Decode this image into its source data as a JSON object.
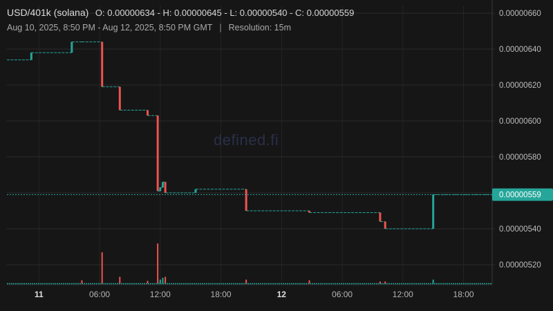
{
  "header": {
    "symbol": "USD/401k (solana)",
    "ohlc": "O: 0.00000634 - H: 0.00000645 - L: 0.00000540 - C: 0.00000559",
    "range": "Aug 10, 2025, 8:50 PM - Aug 12, 2025, 8:50 PM GMT",
    "separator": "|",
    "resolution": "Resolution: 15m"
  },
  "watermark": "defined.fi",
  "chart_data": {
    "type": "line",
    "title": "USD/401k (solana)",
    "xlabel": "",
    "ylabel": "",
    "grid": true,
    "y_range": [
      5.1e-06,
      6.6e-06
    ],
    "y_ticks": [
      "0.00000660",
      "0.00000640",
      "0.00000620",
      "0.00000600",
      "0.00000580",
      "0.00000560",
      "0.00000540",
      "0.00000520"
    ],
    "y_tick_values": [
      6.6e-06,
      6.4e-06,
      6.2e-06,
      6e-06,
      5.8e-06,
      5.6e-06,
      5.4e-06,
      5.2e-06
    ],
    "x_range": [
      "2025-08-10T20:50",
      "2025-08-12T20:50"
    ],
    "x_ticks": [
      {
        "t": "2025-08-11T00:00",
        "label": "11",
        "bold": true
      },
      {
        "t": "2025-08-11T06:00",
        "label": "06:00"
      },
      {
        "t": "2025-08-11T12:00",
        "label": "12:00"
      },
      {
        "t": "2025-08-11T18:00",
        "label": "18:00"
      },
      {
        "t": "2025-08-12T00:00",
        "label": "12",
        "bold": true
      },
      {
        "t": "2025-08-12T06:00",
        "label": "06:00"
      },
      {
        "t": "2025-08-12T12:00",
        "label": "12:00"
      },
      {
        "t": "2025-08-12T18:00",
        "label": "18:00"
      }
    ],
    "last_price": {
      "value": 5.59e-06,
      "label": "0.00000559",
      "color": "#26a69a"
    },
    "colors": {
      "up": "#26a69a",
      "down": "#ef5350"
    },
    "price_steps": [
      {
        "t": "2025-08-10T20:50",
        "v": 6.34e-06
      },
      {
        "t": "2025-08-10T23:15",
        "v": 6.38e-06
      },
      {
        "t": "2025-08-11T03:15",
        "v": 6.44e-06
      },
      {
        "t": "2025-08-11T04:15",
        "v": 6.44e-06
      },
      {
        "t": "2025-08-11T06:15",
        "v": 6.19e-06
      },
      {
        "t": "2025-08-11T08:00",
        "v": 6.06e-06
      },
      {
        "t": "2025-08-11T10:45",
        "v": 6.03e-06
      },
      {
        "t": "2025-08-11T11:45",
        "v": 5.61e-06
      },
      {
        "t": "2025-08-11T12:00",
        "v": 5.63e-06
      },
      {
        "t": "2025-08-11T12:15",
        "v": 5.66e-06
      },
      {
        "t": "2025-08-11T12:30",
        "v": 5.6e-06
      },
      {
        "t": "2025-08-11T15:30",
        "v": 5.62e-06
      },
      {
        "t": "2025-08-11T20:30",
        "v": 5.5e-06
      },
      {
        "t": "2025-08-12T02:45",
        "v": 5.49e-06
      },
      {
        "t": "2025-08-12T09:45",
        "v": 5.44e-06
      },
      {
        "t": "2025-08-12T10:15",
        "v": 5.4e-06
      },
      {
        "t": "2025-08-12T15:00",
        "v": 5.59e-06
      },
      {
        "t": "2025-08-12T20:50",
        "v": 5.59e-06
      }
    ],
    "volume_spikes": [
      {
        "t": "2025-08-11T04:15",
        "h": 0.1,
        "dir": "down"
      },
      {
        "t": "2025-08-11T06:15",
        "h": 1.0,
        "dir": "down"
      },
      {
        "t": "2025-08-11T08:00",
        "h": 0.21,
        "dir": "down"
      },
      {
        "t": "2025-08-11T10:45",
        "h": 0.08,
        "dir": "down"
      },
      {
        "t": "2025-08-11T11:45",
        "h": 1.28,
        "dir": "down"
      },
      {
        "t": "2025-08-11T12:00",
        "h": 0.12,
        "dir": "up"
      },
      {
        "t": "2025-08-11T12:15",
        "h": 0.18,
        "dir": "up"
      },
      {
        "t": "2025-08-11T12:30",
        "h": 0.21,
        "dir": "down"
      },
      {
        "t": "2025-08-11T20:30",
        "h": 0.12,
        "dir": "down"
      },
      {
        "t": "2025-08-12T02:45",
        "h": 0.1,
        "dir": "down"
      },
      {
        "t": "2025-08-12T09:45",
        "h": 0.06,
        "dir": "down"
      },
      {
        "t": "2025-08-12T10:15",
        "h": 0.06,
        "dir": "down"
      },
      {
        "t": "2025-08-12T15:00",
        "h": 0.12,
        "dir": "up"
      }
    ]
  }
}
